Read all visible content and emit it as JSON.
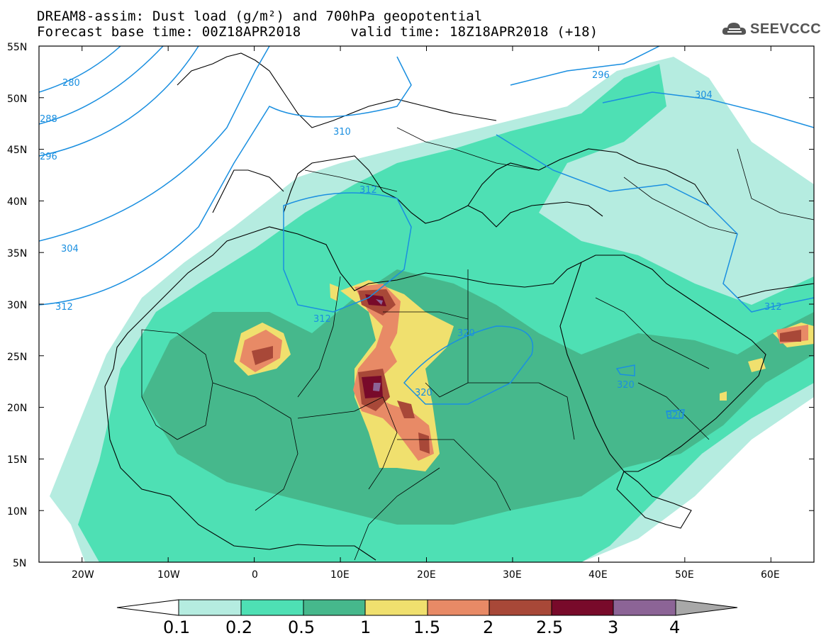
{
  "title": {
    "line1": "DREAM8-assim: Dust load (g/m²) and 700hPa geopotential",
    "line2": "Forecast base time: 00Z18APR2018      valid time: 18Z18APR2018 (+18)"
  },
  "logo": {
    "text": "SEEVCCC",
    "icon": "cloud-icon"
  },
  "map": {
    "lat_labels": [
      "55N",
      "50N",
      "45N",
      "40N",
      "35N",
      "30N",
      "25N",
      "20N",
      "15N",
      "10N",
      "5N"
    ],
    "lon_labels": [
      "20W",
      "10W",
      "0",
      "10E",
      "20E",
      "30E",
      "40E",
      "50E",
      "60E"
    ],
    "lat_range": [
      5,
      55
    ],
    "lon_range": [
      -25,
      65
    ],
    "contour_labels": [
      {
        "text": "280",
        "lon": -19.4,
        "lat": 51.7
      },
      {
        "text": "288",
        "lon": -23,
        "lat": 47.4
      },
      {
        "text": "296",
        "lon": -23,
        "lat": 44.1
      },
      {
        "text": "296",
        "lon": 45,
        "lat": 52.9
      },
      {
        "text": "304",
        "lon": -20,
        "lat": 35.3
      },
      {
        "text": "304",
        "lon": 53.8,
        "lat": 50.2
      },
      {
        "text": "310",
        "lon": 10,
        "lat": 46.7
      },
      {
        "text": "312",
        "lon": -22,
        "lat": 29.9
      },
      {
        "text": "312",
        "lon": 13.3,
        "lat": 40.9
      },
      {
        "text": "312",
        "lon": 7.8,
        "lat": 28.7
      },
      {
        "text": "312",
        "lon": 61,
        "lat": 29.9
      },
      {
        "text": "320",
        "lon": 23.3,
        "lat": 25.7
      },
      {
        "text": "320",
        "lon": 20,
        "lat": 20.4
      },
      {
        "text": "320",
        "lon": 42,
        "lat": 21.8
      },
      {
        "text": "320",
        "lon": 48.6,
        "lat": 19.7
      }
    ],
    "colors": {
      "contour": "#1a8fe0",
      "land_border": "#000000"
    }
  },
  "colorbar": {
    "labels": [
      "0.1",
      "0.2",
      "0.5",
      "1",
      "1.5",
      "2",
      "2.5",
      "3",
      "4"
    ],
    "colors": [
      "#ffffff",
      "#b5ece0",
      "#4ee0b4",
      "#46b88c",
      "#f0e06e",
      "#e88a66",
      "#a84838",
      "#780a2a",
      "#8c6496",
      "#a8a8a8"
    ]
  }
}
